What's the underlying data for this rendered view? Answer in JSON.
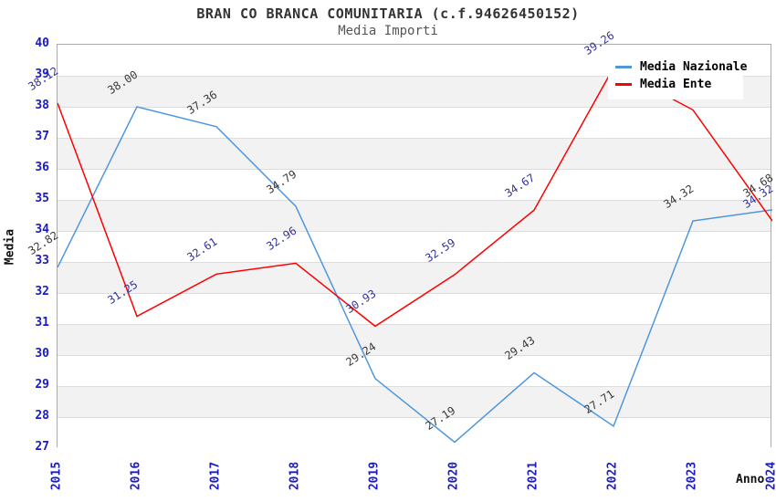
{
  "legend": {
    "items": [
      {
        "label": "Media Nazionale",
        "color": "#4f97dc"
      },
      {
        "label": "Media Ente",
        "color": "#ff0000"
      }
    ]
  },
  "colors": {
    "tick_label": "#1a1acc",
    "band_fill": "#f2f2f2",
    "gridline": "#dddddd",
    "plot_border": "#aaaaaa",
    "title": "#333333",
    "subtitle": "#555555"
  },
  "chart_data": {
    "type": "line",
    "title": "BRAN CO BRANCA COMUNITARIA (c.f.94626450152)",
    "subtitle": "Media Importi",
    "xlabel": "Anno",
    "ylabel": "Media",
    "ylim": [
      27,
      40
    ],
    "grid": "horizontal-alternating-bands",
    "legend_position": "top-right",
    "x_ticks": [
      "2015",
      "2016",
      "2017",
      "2018",
      "2019",
      "2020",
      "2021",
      "2022",
      "2023",
      "2024"
    ],
    "y_ticks": [
      40,
      39,
      38,
      37,
      36,
      35,
      34,
      33,
      32,
      31,
      30,
      29,
      28,
      27
    ],
    "x": [
      2015,
      2016,
      2017,
      2018,
      2019,
      2020,
      2021,
      2022,
      2023,
      2024
    ],
    "series": [
      {
        "name": "Media Nazionale",
        "color": "#4f97dc",
        "label_color": "#3a3a3a",
        "values": [
          32.82,
          38.0,
          37.36,
          34.79,
          29.24,
          27.19,
          29.43,
          27.71,
          34.32,
          34.68
        ]
      },
      {
        "name": "Media Ente",
        "color": "#ff0000",
        "label_color": "#333399",
        "values": [
          38.12,
          31.25,
          32.61,
          32.96,
          30.93,
          32.59,
          34.67,
          39.26,
          37.9,
          34.32
        ]
      }
    ]
  }
}
